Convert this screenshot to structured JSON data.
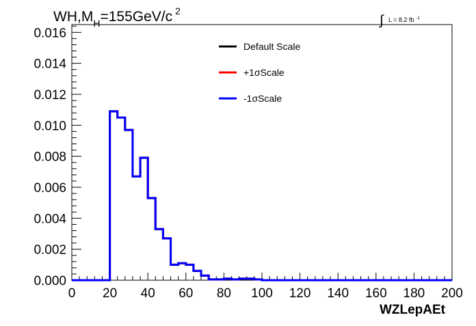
{
  "chart_data": {
    "type": "line",
    "title_main": "WH,M",
    "title_sub": "H",
    "title_rest": "=155GeV/c",
    "title_sup": "2",
    "lumi_label": "L = 8.2 fb",
    "lumi_sup": "-1",
    "xlabel": "WZLepAEt",
    "ylabel": "",
    "xlim": [
      0,
      200
    ],
    "ylim": [
      0,
      0.0165
    ],
    "x_ticks": [
      "0",
      "20",
      "40",
      "60",
      "80",
      "100",
      "120",
      "140",
      "160",
      "180",
      "200"
    ],
    "y_ticks": [
      "0.000",
      "0.002",
      "0.004",
      "0.006",
      "0.008",
      "0.010",
      "0.012",
      "0.014",
      "0.016"
    ],
    "legend_position": "top-center",
    "bin_width": 4,
    "series": [
      {
        "name": "Default Scale",
        "color": "#000000",
        "values": [
          0,
          0,
          0,
          0,
          0,
          0.0109,
          0.0105,
          0.0097,
          0.0067,
          0.0079,
          0.0053,
          0.0033,
          0.0027,
          0.001,
          0.0011,
          0.001,
          0.0006,
          0.0003,
          5e-05,
          5e-05,
          0.0001,
          5e-05,
          0.0001,
          0.0001,
          5e-05,
          0,
          0,
          0,
          0,
          0,
          0,
          0,
          0,
          0,
          0,
          0,
          0,
          0,
          0,
          0,
          0,
          0,
          0,
          0,
          0,
          0,
          0,
          0,
          0,
          0
        ]
      },
      {
        "name": "+1σScale",
        "color": "#ff0000",
        "values": [
          0,
          0,
          0,
          0,
          0,
          0.0109,
          0.0105,
          0.0097,
          0.0067,
          0.0079,
          0.0053,
          0.0033,
          0.0027,
          0.001,
          0.0011,
          0.001,
          0.0006,
          0.0003,
          5e-05,
          5e-05,
          0.0001,
          5e-05,
          0.0001,
          0.0001,
          5e-05,
          0,
          0,
          0,
          0,
          0,
          0,
          0,
          0,
          0,
          0,
          0,
          0,
          0,
          0,
          0,
          0,
          0,
          0,
          0,
          0,
          0,
          0,
          0,
          0,
          0
        ]
      },
      {
        "name": "-1σScale",
        "color": "#0000ff",
        "values": [
          0,
          0,
          0,
          0,
          0,
          0.0109,
          0.0105,
          0.0097,
          0.0067,
          0.0079,
          0.0053,
          0.0033,
          0.0027,
          0.001,
          0.0011,
          0.001,
          0.0006,
          0.0003,
          5e-05,
          5e-05,
          0.0001,
          5e-05,
          0.0001,
          0.0001,
          5e-05,
          0,
          0,
          0,
          0,
          0,
          0,
          0,
          0,
          0,
          0,
          0,
          0,
          0,
          0,
          0,
          0,
          0,
          0,
          0,
          0,
          0,
          0,
          0,
          0,
          0
        ]
      }
    ]
  }
}
